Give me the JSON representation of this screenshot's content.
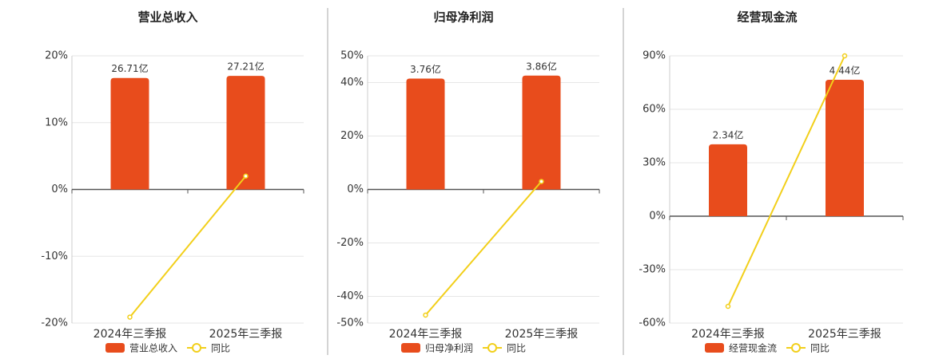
{
  "chart_data": [
    {
      "type": "bar",
      "title": "营业总收入",
      "categories": [
        "2024年三季报",
        "2025年三季报"
      ],
      "series": [
        {
          "name": "营业总收入",
          "color": "#e84c1c",
          "values": [
            26.71,
            27.21
          ],
          "value_labels": [
            "26.71亿",
            "27.21亿"
          ],
          "axis": "y2"
        },
        {
          "name": "同比",
          "type": "line",
          "color": "#f2cf1a",
          "values": [
            -19.1,
            2.0
          ]
        }
      ],
      "ylim": [
        -20,
        20
      ],
      "yticks": [
        {
          "value": -20,
          "label": "-20%"
        },
        {
          "value": -10,
          "label": "-10%"
        },
        {
          "value": 0,
          "label": "0%"
        },
        {
          "value": 10,
          "label": "10%"
        },
        {
          "value": 20,
          "label": "20%"
        }
      ],
      "y2lim": [
        -32,
        32
      ],
      "grid": true
    },
    {
      "type": "bar",
      "title": "归母净利润",
      "categories": [
        "2024年三季报",
        "2025年三季报"
      ],
      "series": [
        {
          "name": "归母净利润",
          "color": "#e84c1c",
          "values": [
            3.76,
            3.86
          ],
          "value_labels": [
            "3.76亿",
            "3.86亿"
          ],
          "axis": "y2"
        },
        {
          "name": "同比",
          "type": "line",
          "color": "#f2cf1a",
          "values": [
            -47,
            3
          ]
        }
      ],
      "ylim": [
        -50,
        50
      ],
      "yticks": [
        {
          "value": -50,
          "label": "-50%"
        },
        {
          "value": -40,
          "label": "-40%"
        },
        {
          "value": -20,
          "label": "-20%"
        },
        {
          "value": 0,
          "label": "0%"
        },
        {
          "value": 20,
          "label": "20%"
        },
        {
          "value": 40,
          "label": "40%"
        },
        {
          "value": 50,
          "label": "50%"
        }
      ],
      "y2lim": [
        -4.53,
        4.53
      ],
      "grid": true
    },
    {
      "type": "bar",
      "title": "经营现金流",
      "categories": [
        "2024年三季报",
        "2025年三季报"
      ],
      "series": [
        {
          "name": "经营现金流",
          "color": "#e84c1c",
          "values": [
            2.34,
            4.44
          ],
          "value_labels": [
            "2.34亿",
            "4.44亿"
          ],
          "axis": "y2"
        },
        {
          "name": "同比",
          "type": "line",
          "color": "#f2cf1a",
          "values": [
            -50.6,
            90
          ]
        }
      ],
      "ylim": [
        -60,
        90
      ],
      "yticks": [
        {
          "value": -60,
          "label": "-60%"
        },
        {
          "value": -30,
          "label": "-30%"
        },
        {
          "value": 0,
          "label": "0%"
        },
        {
          "value": 30,
          "label": "30%"
        },
        {
          "value": 60,
          "label": "60%"
        },
        {
          "value": 90,
          "label": "90%"
        }
      ],
      "y2lim": [
        -3.48,
        5.22
      ],
      "grid": true
    }
  ]
}
